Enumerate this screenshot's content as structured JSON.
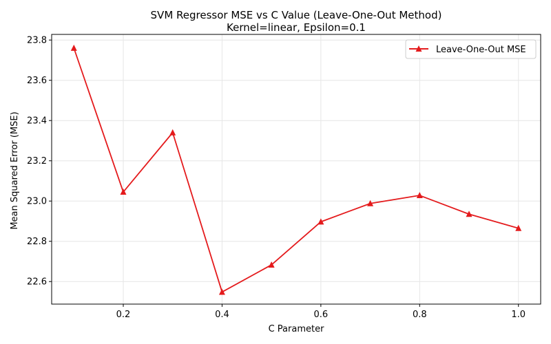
{
  "chart_data": {
    "type": "line",
    "title": "SVM Regressor MSE vs C Value (Leave-One-Out Method)",
    "subtitle": "Kernel=linear, Epsilon=0.1",
    "xlabel": "C Parameter",
    "ylabel": "Mean Squared Error (MSE)",
    "x": [
      0.1,
      0.2,
      0.3,
      0.4,
      0.5,
      0.6,
      0.7,
      0.8,
      0.9,
      1.0
    ],
    "series": [
      {
        "name": "Leave-One-Out MSE",
        "values": [
          23.76,
          23.045,
          23.34,
          22.548,
          22.683,
          22.897,
          22.988,
          23.028,
          22.935,
          22.865
        ],
        "color": "#e41a1c",
        "marker": "triangle-up"
      }
    ],
    "xlim": [
      0.055,
      1.045
    ],
    "ylim": [
      22.488,
      23.828
    ],
    "xticks": [
      "0.2",
      "0.4",
      "0.6",
      "0.8",
      "1.0"
    ],
    "xtick_values": [
      0.2,
      0.4,
      0.6,
      0.8,
      1.0
    ],
    "yticks": [
      "22.6",
      "22.8",
      "23.0",
      "23.2",
      "23.4",
      "23.6",
      "23.8"
    ],
    "ytick_values": [
      22.6,
      22.8,
      23.0,
      23.2,
      23.4,
      23.6,
      23.8
    ],
    "grid": true,
    "legend_position": "top-right"
  }
}
